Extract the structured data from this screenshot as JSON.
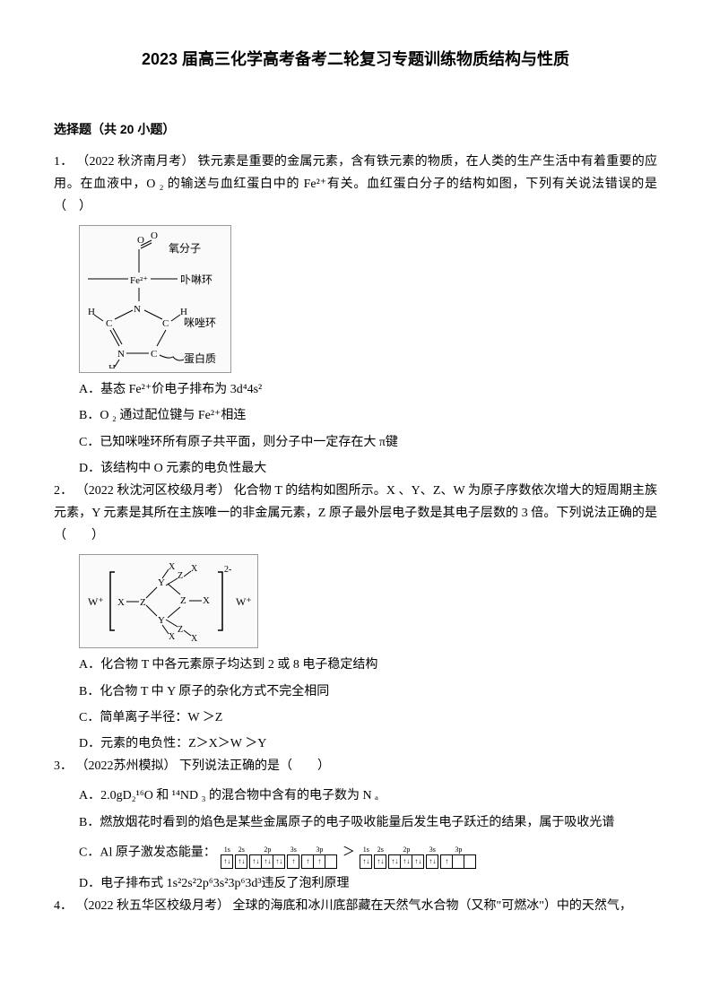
{
  "title": "2023 届高三化学高考备考二轮复习专题训练物质结构与性质",
  "section_header": "选择题（共 20 小题）",
  "questions": [
    {
      "number": "1．",
      "source": "（2022 秋济南月考）",
      "text": "铁元素是重要的金属元素，含有铁元素的物质，在人类的生产生活中有着重要的应用。在血液中，O ₂ 的输送与血红蛋白中的 Fe²⁺有关。血红蛋白分子的结构如图，下列有关说法错误的是（　）",
      "diagram": {
        "labels": [
          "氧分子",
          "卟啉环",
          "咪唑环",
          "蛋白质"
        ],
        "center": "Fe²⁺",
        "atoms": [
          "O",
          "O",
          "N",
          "N",
          "C",
          "C",
          "H",
          "H",
          "H"
        ]
      },
      "options": [
        {
          "label": "A．",
          "text": "基态 Fe²⁺价电子排布为 3d⁴4s²"
        },
        {
          "label": "B．",
          "text": "O ₂ 通过配位键与 Fe²⁺相连"
        },
        {
          "label": "C．",
          "text": "已知咪唑环所有原子共平面，则分子中一定存在大 π键"
        },
        {
          "label": "D．",
          "text": "该结构中 O 元素的电负性最大"
        }
      ]
    },
    {
      "number": "2．",
      "source": "（2022 秋沈河区校级月考）",
      "text": " 化合物 T 的结构如图所示。X 、Y、Z、W 为原子序数依次增大的短周期主族元素，Y 元素是其所在主族唯一的非金属元素，Z 原子最外层电子数是其电子层数的 3 倍。下列说法正确的是（　　）",
      "diagram": {
        "ions": [
          "W⁺",
          "W⁺"
        ],
        "charge": "2-",
        "atoms": [
          "X",
          "Z",
          "Y",
          "Z",
          "X",
          "Z",
          "X"
        ]
      },
      "options": [
        {
          "label": "A．",
          "text": "化合物 T 中各元素原子均达到 2 或 8 电子稳定结构"
        },
        {
          "label": "B．",
          "text": "化合物 T 中 Y 原子的杂化方式不完全相同"
        },
        {
          "label": "C．",
          "text": "简单离子半径：W ＞Z"
        },
        {
          "label": "D．",
          "text": "元素的电负性：Z＞X＞W ＞Y"
        }
      ]
    },
    {
      "number": "3．",
      "source": "（2022苏州模拟）",
      "text": "下列说法正确的是（　　）",
      "options": [
        {
          "label": "A．",
          "text": "2.0gD₂¹⁶O 和 ¹⁴ND ₃ 的混合物中含有的电子数为 N ₐ"
        },
        {
          "label": "B．",
          "text": "燃放烟花时看到的焰色是某些金属原子的电子吸收能量后发生电子跃迁的结果，属于吸收光谱"
        },
        {
          "label": "C．",
          "text_prefix": "Al 原子激发态能量：",
          "text_suffix": ""
        },
        {
          "label": "D．",
          "text": "电子排布式 1s²2s²2p⁶3s²3p⁶3d³违反了泡利原理"
        }
      ],
      "orbital": {
        "left": {
          "groups": [
            {
              "label": "1s",
              "cells": [
                "↑↓"
              ]
            },
            {
              "label": "2s",
              "cells": [
                "↑↓"
              ]
            },
            {
              "label": "2p",
              "cells": [
                "↑↓",
                "↑↓",
                "↑↓"
              ]
            },
            {
              "label": "3s",
              "cells": [
                "↑"
              ]
            },
            {
              "label": "3p",
              "cells": [
                "↑",
                "↑",
                ""
              ]
            }
          ]
        },
        "op": "＞",
        "right": {
          "groups": [
            {
              "label": "1s",
              "cells": [
                "↑↓"
              ]
            },
            {
              "label": "2s",
              "cells": [
                "↑↓"
              ]
            },
            {
              "label": "2p",
              "cells": [
                "↑↓",
                "↑↓",
                "↑↓"
              ]
            },
            {
              "label": "3s",
              "cells": [
                "↑↓"
              ]
            },
            {
              "label": "3p",
              "cells": [
                "↑",
                "",
                ""
              ]
            }
          ]
        }
      }
    },
    {
      "number": "4．",
      "source": "（2022 秋五华区校级月考）",
      "text": " 全球的海底和冰川底部藏在天然气水合物（又称\"可燃冰\"）中的天然气，"
    }
  ]
}
